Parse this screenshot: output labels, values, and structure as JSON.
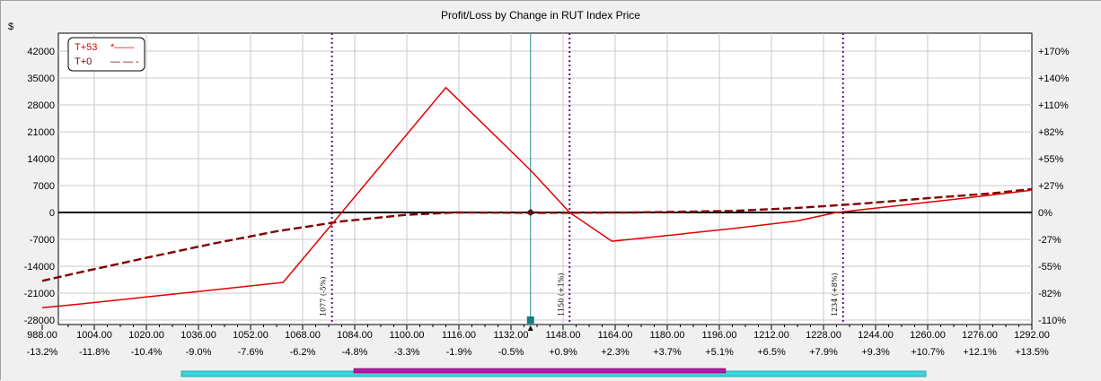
{
  "chart_data": {
    "type": "line",
    "title": "Profit/Loss by Change in RUT Index Price",
    "ylabel": "$",
    "x_range": [
      988,
      1292
    ],
    "ylim": [
      -28000,
      45000
    ],
    "grid": true,
    "legend_position": "top-left",
    "x_ticks": [
      "988.00",
      "1004.00",
      "1020.00",
      "1036.00",
      "1052.00",
      "1068.00",
      "1084.00",
      "1100.00",
      "1116.00",
      "1132.00",
      "1148.00",
      "1164.00",
      "1180.00",
      "1196.00",
      "1212.00",
      "1228.00",
      "1244.00",
      "1260.00",
      "1276.00",
      "1292.00"
    ],
    "x_pct_ticks": [
      "-13.2%",
      "-11.8%",
      "-10.4%",
      "-9.0%",
      "-7.6%",
      "-6.2%",
      "-4.8%",
      "-3.3%",
      "-1.9%",
      "-0.5%",
      "+0.9%",
      "+2.3%",
      "+3.7%",
      "+5.1%",
      "+6.5%",
      "+7.9%",
      "+9.3%",
      "+10.7%",
      "+12.1%",
      "+13.5%"
    ],
    "y_ticks": [
      "42000",
      "35000",
      "28000",
      "21000",
      "14000",
      "7000",
      "0",
      "-7000",
      "-14000",
      "-21000",
      "-28000"
    ],
    "y_right_ticks": [
      "+170%",
      "+140%",
      "+110%",
      "+82%",
      "+55%",
      "+27%",
      "0%",
      "-27%",
      "-55%",
      "-82%",
      "-110%"
    ],
    "series": [
      {
        "name": "T+53",
        "legend_marker": "*——",
        "color": "#e00000",
        "dash": "solid",
        "points": [
          [
            988,
            -24800
          ],
          [
            1000,
            -23800
          ],
          [
            1020,
            -22000
          ],
          [
            1040,
            -20200
          ],
          [
            1062,
            -18200
          ],
          [
            1080,
            0
          ],
          [
            1112,
            32500
          ],
          [
            1138,
            11000
          ],
          [
            1150,
            0
          ],
          [
            1163,
            -7500
          ],
          [
            1180,
            -6000
          ],
          [
            1200,
            -4200
          ],
          [
            1220,
            -2200
          ],
          [
            1232,
            0
          ],
          [
            1250,
            1700
          ],
          [
            1270,
            3600
          ],
          [
            1292,
            5800
          ]
        ]
      },
      {
        "name": "T+0",
        "legend_marker": "— — -",
        "color": "#800000",
        "dash": "dashed",
        "points": [
          [
            988,
            -17800
          ],
          [
            1000,
            -15500
          ],
          [
            1020,
            -11800
          ],
          [
            1040,
            -8200
          ],
          [
            1060,
            -4900
          ],
          [
            1080,
            -2300
          ],
          [
            1100,
            -600
          ],
          [
            1115,
            0
          ],
          [
            1140,
            -100
          ],
          [
            1170,
            0
          ],
          [
            1200,
            400
          ],
          [
            1220,
            1200
          ],
          [
            1240,
            2300
          ],
          [
            1260,
            3700
          ],
          [
            1280,
            5000
          ],
          [
            1292,
            6100
          ]
        ]
      }
    ],
    "markers": [
      {
        "x": 1077,
        "label": "1077 (-5%)"
      },
      {
        "x": 1150,
        "label": "1150 (+1%)"
      },
      {
        "x": 1234,
        "label": "1234 (+8%)"
      }
    ],
    "current_price_x": 1138
  }
}
